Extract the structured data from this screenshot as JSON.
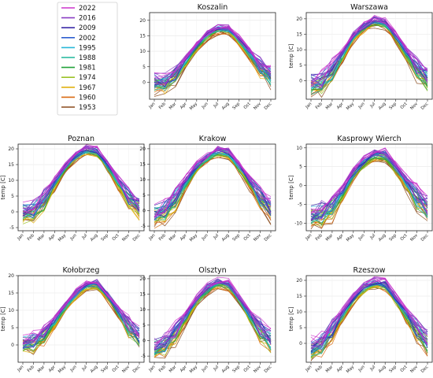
{
  "chart_data": {
    "type": "line",
    "layout": "3x3 small multiples with shared legend",
    "legend": {
      "placement": "top-left",
      "entries": [
        {
          "label": "2022",
          "color": "#cc33cc"
        },
        {
          "label": "2016",
          "color": "#8a3fc4"
        },
        {
          "label": "2009",
          "color": "#3a2aa8"
        },
        {
          "label": "2002",
          "color": "#2f5fcf"
        },
        {
          "label": "1995",
          "color": "#2ab8d8"
        },
        {
          "label": "1988",
          "color": "#1fb59a"
        },
        {
          "label": "1981",
          "color": "#22a33a"
        },
        {
          "label": "1974",
          "color": "#9cc228"
        },
        {
          "label": "1967",
          "color": "#e0b010"
        },
        {
          "label": "1960",
          "color": "#d96a12"
        },
        {
          "label": "1953",
          "color": "#8a4a1c"
        }
      ]
    },
    "months": [
      "Jan",
      "Feb",
      "Mar",
      "Apr",
      "May",
      "Jun",
      "Jul",
      "Aug",
      "Sep",
      "Oct",
      "Nov",
      "Dec"
    ],
    "grid": true,
    "panels": [
      {
        "title": "Koszalin",
        "ylabel": "",
        "yticks": [
          0,
          5,
          10,
          15,
          20
        ],
        "ylim": [
          -5.5,
          22.5
        ],
        "values": [
          -0.5,
          -0.5,
          2.5,
          7.0,
          11.5,
          15.0,
          17.0,
          17.0,
          13.5,
          9.0,
          4.5,
          1.5
        ],
        "spread": 2.6
      },
      {
        "title": "Warszawa",
        "ylabel": "temp [C]",
        "yticks": [
          0,
          5,
          10,
          15,
          20
        ],
        "ylim": [
          -6,
          22
        ],
        "values": [
          -1.5,
          -1.0,
          3.0,
          8.5,
          14.0,
          17.0,
          19.0,
          18.5,
          14.0,
          8.5,
          3.5,
          0.0
        ],
        "spread": 3.0
      },
      {
        "title": "Poznan",
        "ylabel": "temp [C]",
        "yticks": [
          -5,
          0,
          5,
          10,
          15,
          20
        ],
        "ylim": [
          -6,
          21.5
        ],
        "values": [
          -0.5,
          0.0,
          3.5,
          9.0,
          14.0,
          17.5,
          19.5,
          19.0,
          14.5,
          9.0,
          4.0,
          1.0
        ],
        "spread": 2.8
      },
      {
        "title": "Krakow",
        "ylabel": "",
        "yticks": [
          -5,
          0,
          5,
          10,
          15,
          20
        ],
        "ylim": [
          -6.5,
          21.5
        ],
        "values": [
          -1.5,
          -0.5,
          3.5,
          9.0,
          14.0,
          17.0,
          19.0,
          18.5,
          14.0,
          9.0,
          4.0,
          0.0
        ],
        "spread": 3.0
      },
      {
        "title": "Kasprowy Wierch",
        "ylabel": "temp [C]",
        "yticks": [
          -10,
          -5,
          0,
          5,
          10
        ],
        "ylim": [
          -12,
          11
        ],
        "values": [
          -8.0,
          -8.0,
          -6.0,
          -2.0,
          3.0,
          6.0,
          8.0,
          8.0,
          4.5,
          0.5,
          -3.5,
          -6.5
        ],
        "spread": 2.8
      },
      {
        "title": "Kołobrzeg",
        "ylabel": "temp [C]",
        "yticks": [
          0,
          5,
          10,
          15,
          20
        ],
        "ylim": [
          -5,
          20
        ],
        "values": [
          0.5,
          0.5,
          2.5,
          6.5,
          11.0,
          14.5,
          17.0,
          17.5,
          14.0,
          9.5,
          5.0,
          2.0
        ],
        "spread": 2.4
      },
      {
        "title": "Olsztyn",
        "ylabel": "",
        "yticks": [
          -5,
          0,
          5,
          10,
          15,
          20
        ],
        "ylim": [
          -7,
          21
        ],
        "values": [
          -2.0,
          -1.5,
          2.0,
          7.5,
          13.0,
          16.5,
          18.5,
          18.0,
          13.5,
          8.0,
          3.0,
          -0.5
        ],
        "spread": 3.0
      },
      {
        "title": "Rzeszow",
        "ylabel": "temp [C]",
        "yticks": [
          0,
          5,
          10,
          15,
          20
        ],
        "ylim": [
          -6,
          21.5
        ],
        "values": [
          -1.5,
          -0.5,
          3.5,
          9.0,
          14.0,
          17.5,
          19.0,
          18.5,
          14.0,
          9.0,
          4.0,
          0.0
        ],
        "spread": 3.0
      }
    ]
  }
}
